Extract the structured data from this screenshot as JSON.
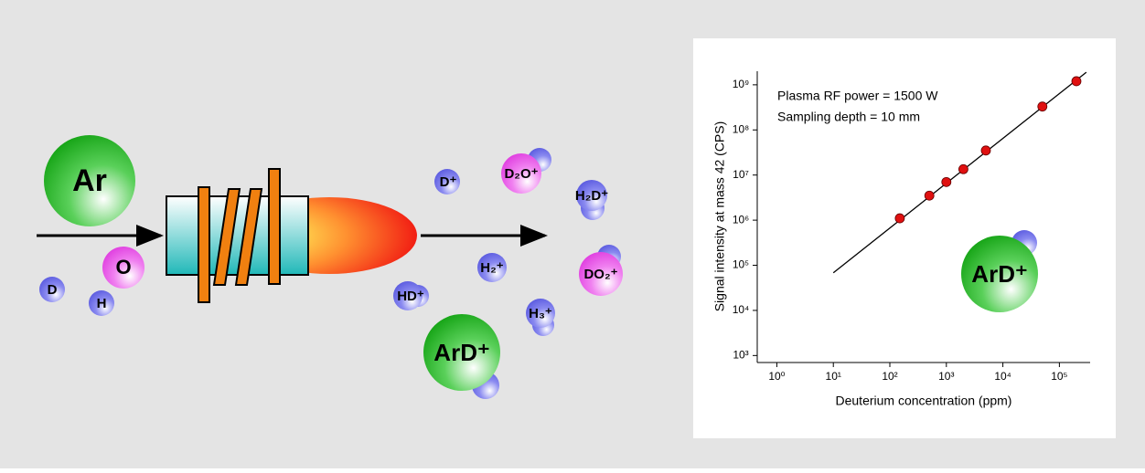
{
  "diagram": {
    "species": {
      "ar": "Ar",
      "o": "O",
      "d": "D",
      "h": "H",
      "d_plus": "D⁺",
      "d2o_plus": "D₂O⁺",
      "h2d_plus": "H₂D⁺",
      "h2_plus": "H₂⁺",
      "do2_plus": "DO₂⁺",
      "hd_plus": "HD⁺",
      "h3_plus": "H₃⁺",
      "ard_plus": "ArD⁺"
    }
  },
  "chart_data": {
    "type": "scatter",
    "log_x": true,
    "log_y": true,
    "x_label": "Deuterium concentration (ppm)",
    "y_label": "Signal intensity at mass 42 (CPS)",
    "annotations": [
      "Plasma RF power = 1500 W",
      "Sampling depth = 10 mm"
    ],
    "inset_label": "ArD⁺",
    "xlim": [
      0.45,
      350000
    ],
    "ylim": [
      700,
      2000000000
    ],
    "xticks": [
      {
        "value": 1,
        "label": "10⁰"
      },
      {
        "value": 10,
        "label": "10¹"
      },
      {
        "value": 100,
        "label": "10²"
      },
      {
        "value": 1000,
        "label": "10³"
      },
      {
        "value": 10000,
        "label": "10⁴"
      },
      {
        "value": 100000,
        "label": "10⁵"
      }
    ],
    "yticks": [
      {
        "value": 1000,
        "label": "10³"
      },
      {
        "value": 10000,
        "label": "10⁴"
      },
      {
        "value": 100000,
        "label": "10⁵"
      },
      {
        "value": 1000000,
        "label": "10⁶"
      },
      {
        "value": 10000000,
        "label": "10⁷"
      },
      {
        "value": 100000000,
        "label": "10⁸"
      },
      {
        "value": 1000000000,
        "label": "10⁹"
      }
    ],
    "series": [
      {
        "color": "#e01010",
        "x": [
          150,
          500,
          1000,
          2000,
          5000,
          50000,
          200000
        ],
        "values": [
          1100000,
          3500000,
          7000000,
          13500000,
          35000000,
          330000000,
          1200000000
        ]
      }
    ],
    "fit_line": {
      "color": "#000000",
      "x": [
        10,
        300000
      ],
      "values": [
        68000,
        1900000000
      ]
    }
  }
}
